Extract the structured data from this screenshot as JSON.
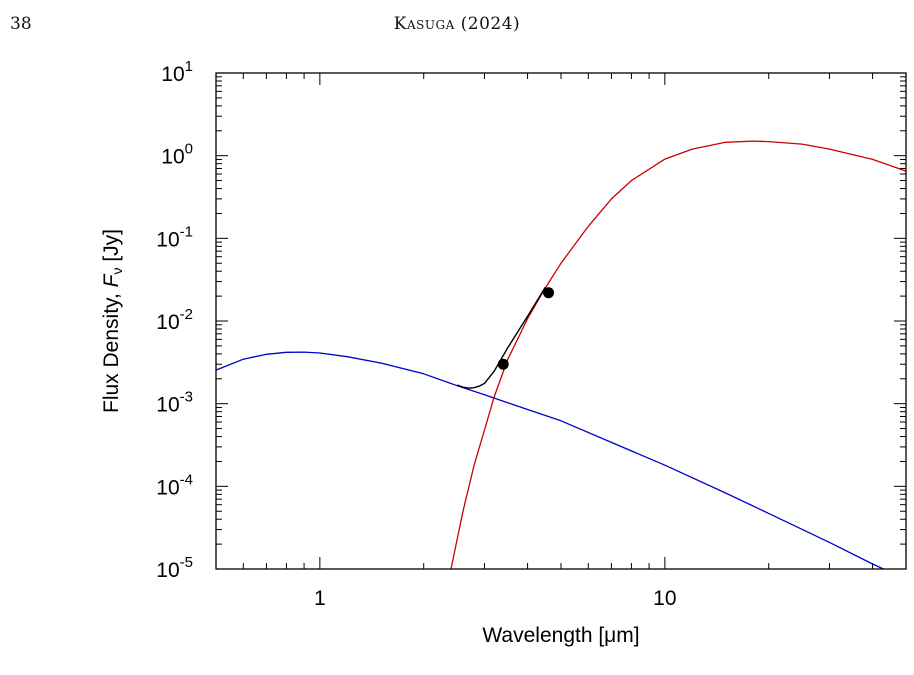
{
  "page": {
    "number": "38",
    "running_head_author": "Kasuga",
    "running_head_year": "(2024)"
  },
  "chart_data": {
    "type": "line",
    "title": "",
    "xlabel": "Wavelength [μm]",
    "ylabel_prefix": "Flux Density, ",
    "ylabel_symbol": "F",
    "ylabel_subscript": "ν",
    "ylabel_unit": " [Jy]",
    "xscale": "log",
    "yscale": "log",
    "xlim": [
      0.5,
      50
    ],
    "ylim": [
      1e-05,
      10
    ],
    "x_tick_labels": [
      {
        "value": 1,
        "label": "1"
      },
      {
        "value": 10,
        "label": "10"
      }
    ],
    "y_tick_labels": [
      {
        "value": 10,
        "base": "10",
        "exp": "1"
      },
      {
        "value": 1,
        "base": "10",
        "exp": "0"
      },
      {
        "value": 0.1,
        "base": "10",
        "exp": "-1"
      },
      {
        "value": 0.01,
        "base": "10",
        "exp": "-2"
      },
      {
        "value": 0.001,
        "base": "10",
        "exp": "-3"
      },
      {
        "value": 0.0001,
        "base": "10",
        "exp": "-4"
      },
      {
        "value": 1e-05,
        "base": "10",
        "exp": "-5"
      }
    ],
    "grid": false,
    "legend": "none",
    "series": [
      {
        "color": "#0000cc",
        "kind": "line",
        "points": [
          [
            0.5,
            0.00255
          ],
          [
            0.6,
            0.00345
          ],
          [
            0.7,
            0.00395
          ],
          [
            0.8,
            0.00418
          ],
          [
            0.9,
            0.0042
          ],
          [
            1.0,
            0.0041
          ],
          [
            1.2,
            0.0037
          ],
          [
            1.5,
            0.0031
          ],
          [
            2.0,
            0.0023
          ],
          [
            2.5,
            0.00165
          ],
          [
            3.0,
            0.00128
          ],
          [
            4.0,
            0.00085
          ],
          [
            5.0,
            0.00062
          ],
          [
            7.0,
            0.00034
          ],
          [
            10.0,
            0.00018
          ],
          [
            15.0,
            8.3e-05
          ],
          [
            20.0,
            4.7e-05
          ],
          [
            30.0,
            2.1e-05
          ],
          [
            40.0,
            1.15e-05
          ],
          [
            43.0,
            1e-05
          ]
        ]
      },
      {
        "color": "#cc0000",
        "kind": "line",
        "points": [
          [
            2.4,
            1e-05
          ],
          [
            2.6,
            5e-05
          ],
          [
            2.8,
            0.00018
          ],
          [
            3.0,
            0.00048
          ],
          [
            3.2,
            0.0012
          ],
          [
            3.5,
            0.0034
          ],
          [
            4.0,
            0.0107
          ],
          [
            4.5,
            0.025
          ],
          [
            5.0,
            0.05
          ],
          [
            6.0,
            0.14
          ],
          [
            7.0,
            0.3
          ],
          [
            8.0,
            0.5
          ],
          [
            10.0,
            0.91
          ],
          [
            12.0,
            1.2
          ],
          [
            15.0,
            1.45
          ],
          [
            18.0,
            1.5
          ],
          [
            20.0,
            1.48
          ],
          [
            25.0,
            1.38
          ],
          [
            30.0,
            1.2
          ],
          [
            40.0,
            0.9
          ],
          [
            50.0,
            0.65
          ]
        ]
      },
      {
        "color": "#000000",
        "kind": "line",
        "points": [
          [
            2.5,
            0.00168
          ],
          [
            2.6,
            0.00158
          ],
          [
            2.7,
            0.00154
          ],
          [
            2.8,
            0.00156
          ],
          [
            2.9,
            0.00163
          ],
          [
            3.0,
            0.00176
          ],
          [
            3.2,
            0.00246
          ],
          [
            3.5,
            0.00472
          ],
          [
            4.0,
            0.0114
          ],
          [
            4.5,
            0.0255
          ]
        ]
      },
      {
        "color": "#000000",
        "kind": "scatter",
        "points": [
          [
            3.4,
            0.003
          ],
          [
            4.6,
            0.022
          ]
        ]
      }
    ]
  }
}
